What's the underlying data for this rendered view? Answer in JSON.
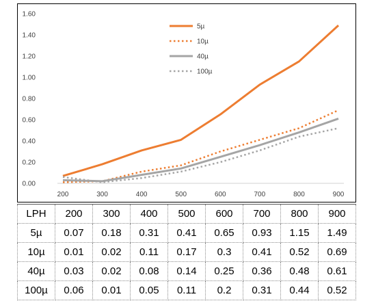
{
  "chart_data": {
    "type": "line",
    "x": [
      200,
      300,
      400,
      500,
      600,
      700,
      800,
      900
    ],
    "x_ticks": [
      "200",
      "300",
      "400",
      "500",
      "600",
      "700",
      "800",
      "900"
    ],
    "y_ticks": [
      "0.00",
      "0.20",
      "0.40",
      "0.60",
      "0.80",
      "1.00",
      "1.20",
      "1.40",
      "1.60"
    ],
    "ylim": [
      0,
      1.6
    ],
    "grid": "none",
    "legend_position": "top-center",
    "series": [
      {
        "name": "5µ",
        "values": [
          0.07,
          0.18,
          0.31,
          0.41,
          0.65,
          0.93,
          1.15,
          1.49
        ],
        "color": "#ED7D31",
        "style": "solid"
      },
      {
        "name": "10µ",
        "values": [
          0.01,
          0.02,
          0.11,
          0.17,
          0.3,
          0.41,
          0.52,
          0.69
        ],
        "color": "#ED7D31",
        "style": "dotted"
      },
      {
        "name": "40µ",
        "values": [
          0.03,
          0.02,
          0.08,
          0.14,
          0.25,
          0.36,
          0.48,
          0.61
        ],
        "color": "#A5A5A5",
        "style": "solid"
      },
      {
        "name": "100µ",
        "values": [
          0.06,
          0.01,
          0.05,
          0.11,
          0.2,
          0.31,
          0.44,
          0.52
        ],
        "color": "#A5A5A5",
        "style": "dotted"
      }
    ]
  },
  "table": {
    "header_label": "LPH",
    "columns": [
      "200",
      "300",
      "400",
      "500",
      "600",
      "700",
      "800",
      "900"
    ],
    "rows": [
      {
        "label": "5µ",
        "values": [
          "0.07",
          "0.18",
          "0.31",
          "0.41",
          "0.65",
          "0.93",
          "1.15",
          "1.49"
        ]
      },
      {
        "label": "10µ",
        "values": [
          "0.01",
          "0.02",
          "0.11",
          "0.17",
          "0.3",
          "0.41",
          "0.52",
          "0.69"
        ]
      },
      {
        "label": "40µ",
        "values": [
          "0.03",
          "0.02",
          "0.08",
          "0.14",
          "0.25",
          "0.36",
          "0.48",
          "0.61"
        ]
      },
      {
        "label": "100µ",
        "values": [
          "0.06",
          "0.01",
          "0.05",
          "0.11",
          "0.2",
          "0.31",
          "0.44",
          "0.52"
        ]
      }
    ]
  }
}
